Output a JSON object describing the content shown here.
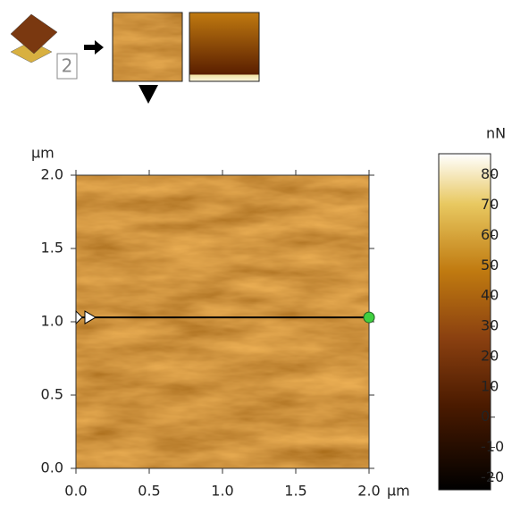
{
  "toolbar": {
    "channel_badge": "2"
  },
  "image": {
    "x_unit": "µm",
    "y_unit": "µm",
    "xlim": [
      0,
      2
    ],
    "ylim": [
      0,
      2
    ],
    "xticks": [
      {
        "value": 0,
        "label": "0.0"
      },
      {
        "value": 0.5,
        "label": "0.5"
      },
      {
        "value": 1,
        "label": "1.0"
      },
      {
        "value": 1.5,
        "label": "1.5"
      },
      {
        "value": 2,
        "label": "2.0"
      }
    ],
    "yticks": [
      {
        "value": 0,
        "label": "0.0"
      },
      {
        "value": 0.5,
        "label": "0.5"
      },
      {
        "value": 1,
        "label": "1.0"
      },
      {
        "value": 1.5,
        "label": "1.5"
      },
      {
        "value": 2,
        "label": "2.0"
      }
    ],
    "cursor_y": 1.03
  },
  "colorbar": {
    "unit": "nN",
    "lim": [
      -24,
      87
    ],
    "ticks": [
      -20,
      -10,
      0,
      10,
      20,
      30,
      40,
      50,
      60,
      70,
      80
    ]
  }
}
